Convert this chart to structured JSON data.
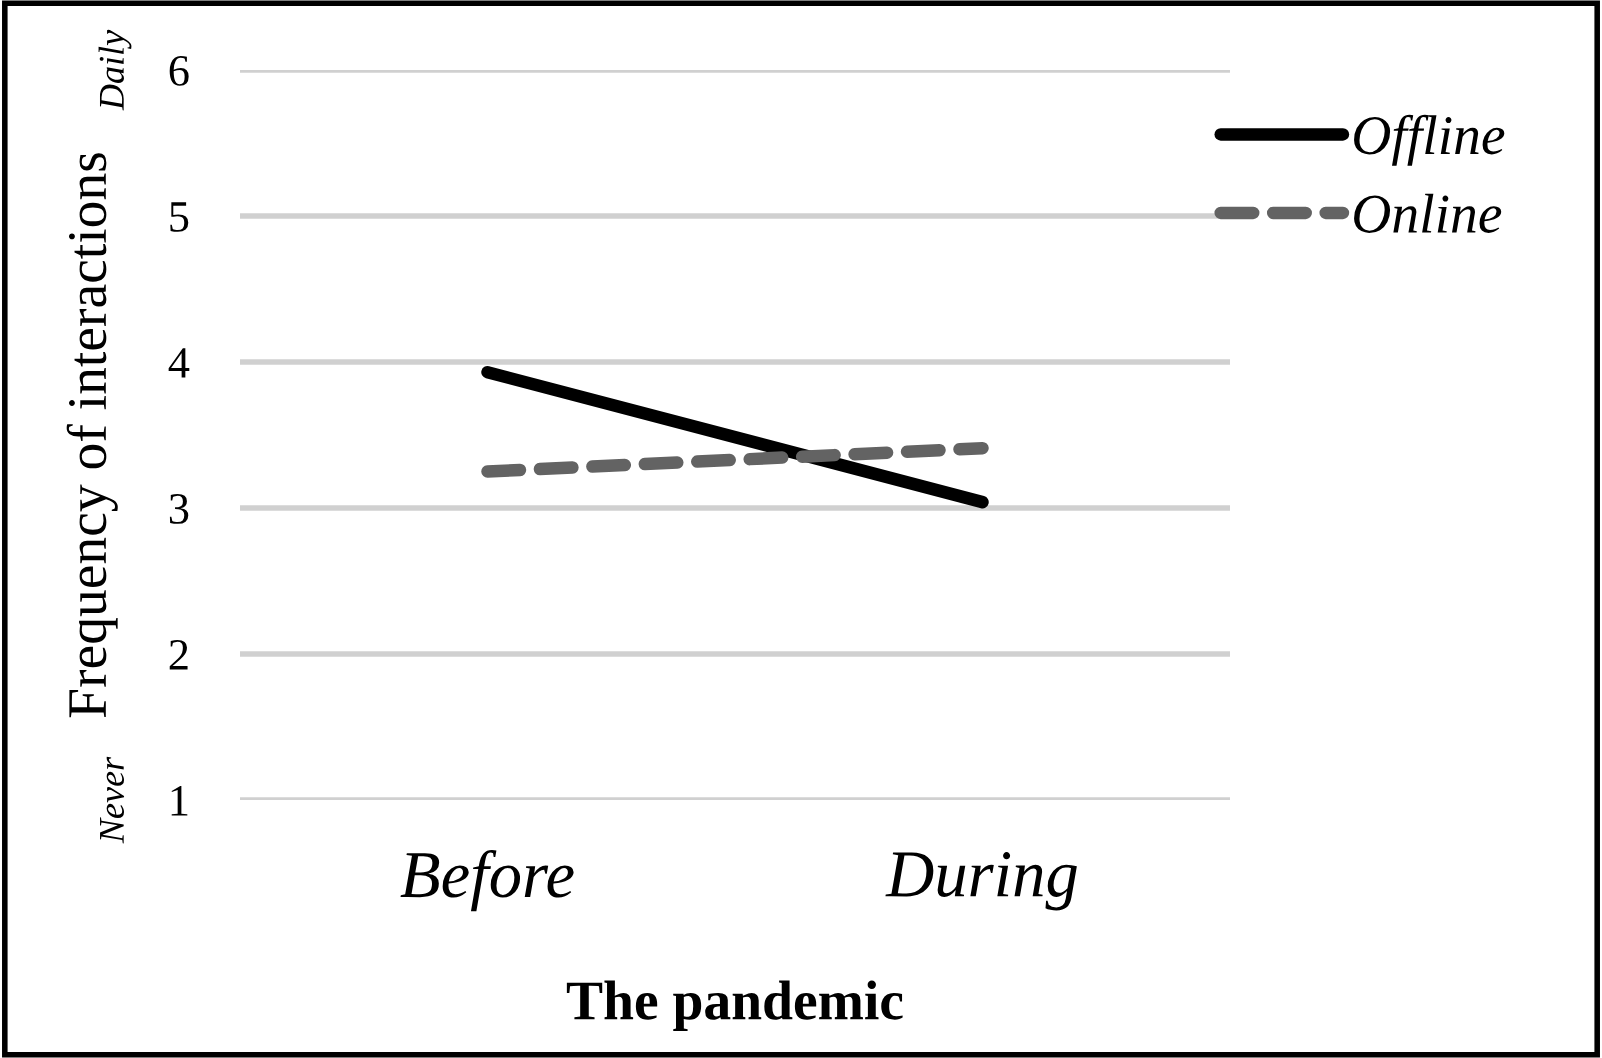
{
  "chart_data": {
    "type": "line",
    "xlabel": "The pandemic",
    "ylabel": "Frequency of interactions",
    "categories": [
      "Before",
      "During"
    ],
    "series": [
      {
        "name": "Offline",
        "color": "#000000",
        "values": [
          3.93,
          3.04
        ],
        "line_style": "solid"
      },
      {
        "name": "Online",
        "color": "#636363",
        "values": [
          3.25,
          3.41
        ],
        "line_style": "dashed"
      }
    ],
    "ylim": [
      1,
      6
    ],
    "yticks": [
      1,
      2,
      3,
      4,
      5,
      6
    ],
    "grid": "y",
    "legend": "right",
    "marker": "none",
    "annotations": [
      "Daily",
      "Never"
    ]
  }
}
